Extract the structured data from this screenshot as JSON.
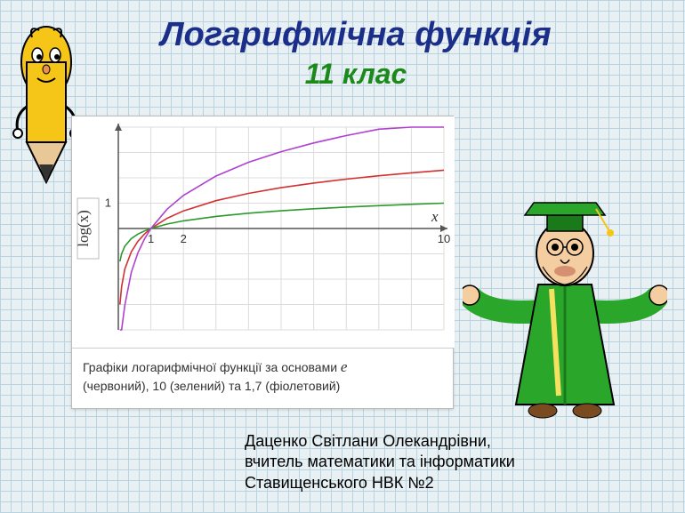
{
  "title": {
    "main": "Логарифмічна функція",
    "sub": "11 клас",
    "main_color": "#1a2e8a",
    "sub_color": "#1b8a1b"
  },
  "chart": {
    "type": "line",
    "ylabel": "log(x)",
    "xlabel": "x",
    "xlim": [
      0,
      10
    ],
    "ylim": [
      -4,
      4
    ],
    "xticks": [
      1,
      2,
      10
    ],
    "yticks": [
      1
    ],
    "grid_color": "#dcdcdc",
    "axis_color": "#555555",
    "background_color": "#ffffff",
    "series": [
      {
        "name": "base_e",
        "color": "#d33030",
        "width": 1.6,
        "points": [
          [
            0.05,
            -3.0
          ],
          [
            0.1,
            -2.3
          ],
          [
            0.2,
            -1.6
          ],
          [
            0.4,
            -0.92
          ],
          [
            0.6,
            -0.51
          ],
          [
            0.8,
            -0.22
          ],
          [
            1,
            0
          ],
          [
            1.5,
            0.405
          ],
          [
            2,
            0.693
          ],
          [
            3,
            1.099
          ],
          [
            4,
            1.386
          ],
          [
            5,
            1.609
          ],
          [
            6,
            1.792
          ],
          [
            7,
            1.946
          ],
          [
            8,
            2.079
          ],
          [
            9,
            2.197
          ],
          [
            10,
            2.303
          ]
        ]
      },
      {
        "name": "base_10",
        "color": "#2a9a2a",
        "width": 1.6,
        "points": [
          [
            0.05,
            -1.3
          ],
          [
            0.1,
            -1.0
          ],
          [
            0.2,
            -0.699
          ],
          [
            0.4,
            -0.398
          ],
          [
            0.6,
            -0.222
          ],
          [
            0.8,
            -0.097
          ],
          [
            1,
            0
          ],
          [
            1.5,
            0.176
          ],
          [
            2,
            0.301
          ],
          [
            3,
            0.477
          ],
          [
            4,
            0.602
          ],
          [
            5,
            0.699
          ],
          [
            6,
            0.778
          ],
          [
            7,
            0.845
          ],
          [
            8,
            0.903
          ],
          [
            9,
            0.954
          ],
          [
            10,
            1.0
          ]
        ]
      },
      {
        "name": "base_1.7",
        "color": "#b040d0",
        "width": 1.6,
        "points": [
          [
            0.05,
            -5.65
          ],
          [
            0.1,
            -4.34
          ],
          [
            0.2,
            -3.03
          ],
          [
            0.4,
            -1.73
          ],
          [
            0.6,
            -0.96
          ],
          [
            0.8,
            -0.42
          ],
          [
            1,
            0
          ],
          [
            1.5,
            0.764
          ],
          [
            2,
            1.306
          ],
          [
            3,
            2.071
          ],
          [
            4,
            2.613
          ],
          [
            5,
            3.033
          ],
          [
            6,
            3.377
          ],
          [
            7,
            3.667
          ],
          [
            8,
            3.919
          ],
          [
            9,
            4.141
          ],
          [
            10,
            4.339
          ]
        ]
      }
    ],
    "caption_pre": "Графіки логарифмічної функції за основами ",
    "caption_post": "(червоний), 10 (зелений) та 1,7 (фіолетовий)"
  },
  "author": {
    "line1": "Даценко Світлани Олекандрівни,",
    "line2": "вчитель математики та інформатики",
    "line3": "Ставищенського НВК №2"
  },
  "decor": {
    "pencil": {
      "body_color": "#f5c518",
      "outline": "#000000",
      "tip_wood": "#e8c896",
      "tip_lead": "#333333"
    },
    "graduate": {
      "robe_color": "#2aa72a",
      "skin": "#f4cda0",
      "hat": "#1a7a1a",
      "tassel": "#f5c518"
    }
  }
}
